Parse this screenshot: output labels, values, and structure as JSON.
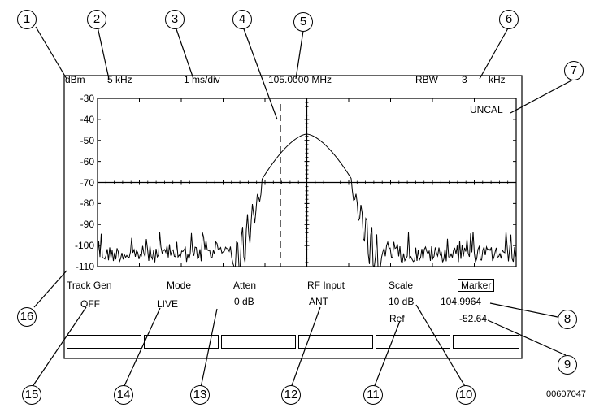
{
  "header": {
    "ref_unit": "dBm",
    "span": "5  kHz",
    "sweep": "1  ms/div",
    "center_freq": "105.0000  MHz",
    "rbw_label": "RBW",
    "rbw_value": "3",
    "rbw_unit": "kHz"
  },
  "status": {
    "uncal": "UNCAL"
  },
  "chart_data": {
    "type": "line",
    "ylim": [
      -110,
      -30
    ],
    "y_ticks": [
      "-30",
      "-40",
      "-50",
      "-60",
      "-70",
      "-80",
      "-90",
      "-100",
      "-110"
    ],
    "peak_level": -47,
    "noise_floor": -100,
    "grid": false
  },
  "softkey_labels": {
    "track_gen": "Track Gen",
    "mode": "Mode",
    "atten": "Atten",
    "rf_input": "RF Input",
    "scale": "Scale",
    "marker": "Marker"
  },
  "softkey_values": {
    "track_gen": "OFF",
    "mode": "LIVE",
    "atten": "0  dB",
    "rf_input": "ANT",
    "scale": "10  dB",
    "ref": "Ref",
    "marker_freq": "104.9964",
    "marker_level": "-52.64"
  },
  "callouts": [
    "1",
    "2",
    "3",
    "4",
    "5",
    "6",
    "7",
    "8",
    "9",
    "10",
    "11",
    "12",
    "13",
    "14",
    "15",
    "16"
  ],
  "figure_id": "00607047"
}
